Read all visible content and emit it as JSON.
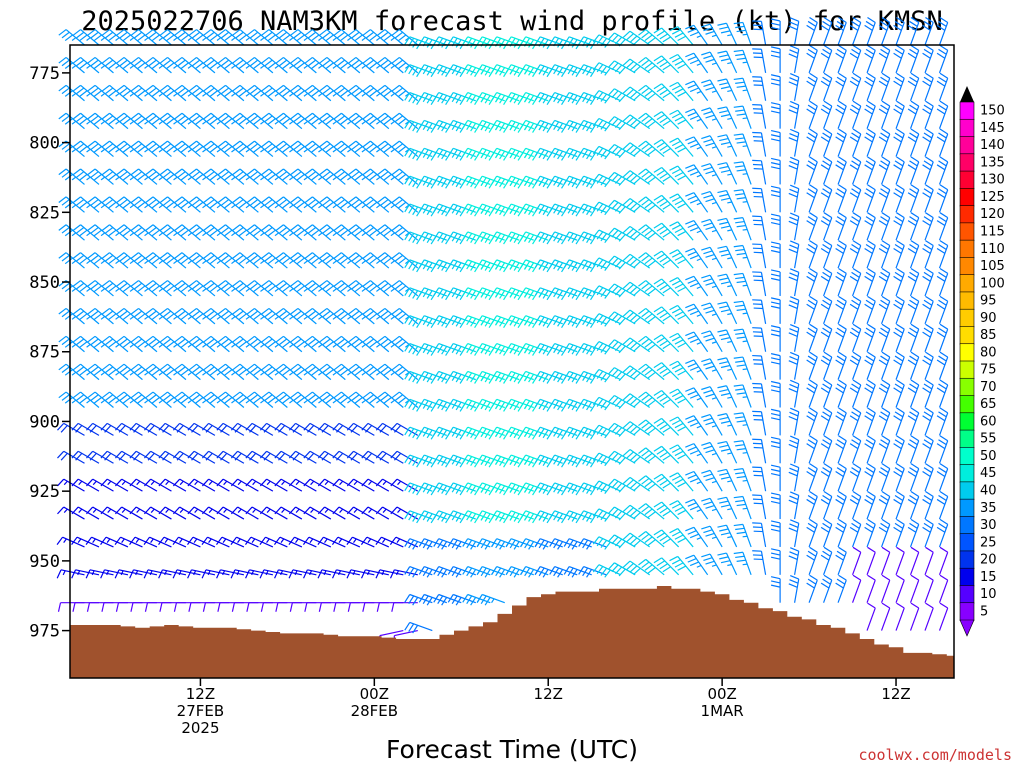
{
  "chart_data": {
    "type": "wind-barb-time-height",
    "title": "2025022706 NAM3KM forecast wind profile (kt) for KMSN",
    "xlabel": "Forecast Time (UTC)",
    "ylabel": "",
    "units": "kt",
    "x_range_hours": [
      -3,
      58
    ],
    "y_range_mb": [
      765,
      992
    ],
    "y_ticks": [
      775,
      800,
      825,
      850,
      875,
      900,
      925,
      950,
      975
    ],
    "x_ticks": [
      {
        "hour": 6,
        "label1": "12Z",
        "label2": "27FEB",
        "label3": "2025"
      },
      {
        "hour": 18,
        "label1": "00Z",
        "label2": "28FEB",
        "label3": ""
      },
      {
        "hour": 30,
        "label1": "12Z",
        "label2": "",
        "label3": ""
      },
      {
        "hour": 42,
        "label1": "00Z",
        "label2": "1MAR",
        "label3": ""
      },
      {
        "hour": 54,
        "label1": "12Z",
        "label2": "",
        "label3": ""
      }
    ],
    "levels_mb": [
      765,
      775,
      785,
      795,
      805,
      815,
      825,
      835,
      845,
      855,
      865,
      875,
      885,
      895,
      905,
      915,
      925,
      935,
      945,
      955,
      965,
      975
    ],
    "times_hours": [
      -2,
      -1,
      0,
      1,
      2,
      3,
      4,
      5,
      6,
      7,
      8,
      9,
      10,
      11,
      12,
      13,
      14,
      15,
      16,
      17,
      18,
      19,
      20,
      21,
      22,
      23,
      24,
      25,
      26,
      27,
      28,
      29,
      30,
      31,
      32,
      33,
      34,
      35,
      36,
      37,
      38,
      39,
      40,
      41,
      42,
      43,
      44,
      45,
      46,
      47,
      48,
      49,
      50,
      51,
      52,
      53,
      54,
      55,
      56,
      57
    ],
    "surface_pressure_mb": [
      [
        -3,
        973
      ],
      [
        0,
        973
      ],
      [
        2,
        974
      ],
      [
        4,
        973
      ],
      [
        6,
        974
      ],
      [
        8,
        974
      ],
      [
        10,
        975
      ],
      [
        12,
        976
      ],
      [
        14,
        976
      ],
      [
        16,
        977
      ],
      [
        18,
        977
      ],
      [
        20,
        978
      ],
      [
        22,
        978
      ],
      [
        24,
        975
      ],
      [
        26,
        972
      ],
      [
        27,
        969
      ],
      [
        28,
        966
      ],
      [
        29,
        963
      ],
      [
        30,
        962
      ],
      [
        31,
        961
      ],
      [
        32,
        961
      ],
      [
        33,
        961
      ],
      [
        34,
        960
      ],
      [
        35,
        960
      ],
      [
        36,
        960
      ],
      [
        37,
        960
      ],
      [
        38,
        959
      ],
      [
        39,
        960
      ],
      [
        40,
        960
      ],
      [
        41,
        961
      ],
      [
        42,
        962
      ],
      [
        43,
        964
      ],
      [
        44,
        965
      ],
      [
        45,
        967
      ],
      [
        46,
        968
      ],
      [
        47,
        970
      ],
      [
        48,
        971
      ],
      [
        49,
        973
      ],
      [
        50,
        974
      ],
      [
        51,
        976
      ],
      [
        52,
        978
      ],
      [
        53,
        980
      ],
      [
        54,
        981
      ],
      [
        55,
        983
      ],
      [
        56,
        983
      ],
      [
        58,
        984
      ]
    ],
    "wind_profile_summary": [
      {
        "period": "hours -2 to 21",
        "layer": "765-900 mb",
        "direction_deg": 310,
        "speed_kt": 35
      },
      {
        "period": "hours -2 to 21",
        "layer": "900-975 mb",
        "direction_deg": 300,
        "speed_kt": 20
      },
      {
        "period": "hours 22 to 34",
        "layer": "765-975 mb",
        "direction_deg": 290,
        "speed_kt": 45
      },
      {
        "period": "hours 35 to 44",
        "layer": "765-975 mb",
        "direction_deg": 340,
        "speed_kt": 35
      },
      {
        "period": "hours 45 to 57",
        "layer": "765-975 mb",
        "direction_deg": 20,
        "speed_kt": 25
      }
    ],
    "colorbar": {
      "min": 5,
      "max": 150,
      "step": 5,
      "labels": [
        150,
        145,
        140,
        135,
        130,
        125,
        120,
        115,
        110,
        105,
        100,
        95,
        90,
        85,
        80,
        75,
        70,
        65,
        60,
        55,
        50,
        45,
        40,
        35,
        30,
        25,
        20,
        15,
        10,
        5
      ],
      "colors": [
        "#ff00ff",
        "#ff00cc",
        "#ff0099",
        "#ff0066",
        "#ff0033",
        "#ff0000",
        "#ff2a00",
        "#ff5500",
        "#ff7700",
        "#ff8800",
        "#ffaa00",
        "#ffbb00",
        "#ffcc00",
        "#ffdd00",
        "#ffff00",
        "#ccff00",
        "#88ff00",
        "#44ff00",
        "#00ff33",
        "#00ff88",
        "#00ffcc",
        "#00eedd",
        "#00ccee",
        "#0099ff",
        "#0077ff",
        "#0055ff",
        "#0033ee",
        "#0000ee",
        "#5500ff",
        "#8800ff"
      ]
    }
  },
  "credit": "coolwx.com/models",
  "colors": {
    "terrain": "#a0522d",
    "axis": "#000000",
    "credit": "#cc3333"
  }
}
